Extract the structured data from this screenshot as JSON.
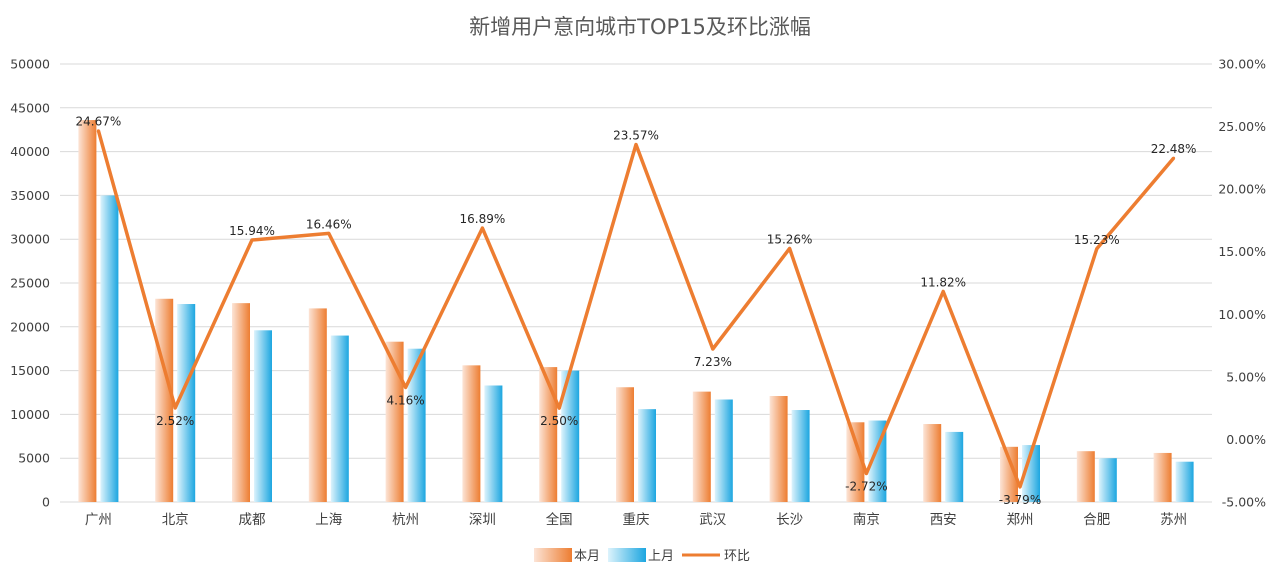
{
  "chart_data": {
    "type": "bar",
    "title": "新增用户意向城市TOP15及环比涨幅",
    "categories": [
      "广州",
      "北京",
      "成都",
      "上海",
      "杭州",
      "深圳",
      "全国",
      "重庆",
      "武汉",
      "长沙",
      "南京",
      "西安",
      "郑州",
      "合肥",
      "苏州"
    ],
    "series": [
      {
        "name": "本月",
        "kind": "bar",
        "axis": "left",
        "color": "#ED7D31",
        "values": [
          43600,
          23200,
          22700,
          22100,
          18300,
          15600,
          15400,
          13100,
          12600,
          12100,
          9100,
          8900,
          6300,
          5800,
          5600
        ]
      },
      {
        "name": "上月",
        "kind": "bar",
        "axis": "left",
        "color": "#1CA6E0",
        "values": [
          35000,
          22600,
          19600,
          19000,
          17500,
          13300,
          15000,
          10600,
          11700,
          10500,
          9300,
          8000,
          6500,
          5000,
          4600
        ]
      },
      {
        "name": "环比",
        "kind": "line",
        "axis": "right",
        "color": "#ED7D31",
        "values": [
          24.67,
          2.52,
          15.94,
          16.46,
          4.16,
          16.89,
          2.5,
          23.57,
          7.23,
          15.26,
          -2.72,
          11.82,
          -3.79,
          15.23,
          22.48
        ],
        "labels": [
          "24.67%",
          "2.52%",
          "15.94%",
          "16.46%",
          "4.16%",
          "16.89%",
          "2.50%",
          "23.57%",
          "7.23%",
          "15.26%",
          "-2.72%",
          "11.82%",
          "-3.79%",
          "15.23%",
          "22.48%"
        ]
      }
    ],
    "y_left": {
      "min": 0,
      "max": 50000,
      "step": 5000,
      "tick_labels": [
        "0",
        "5000",
        "10000",
        "15000",
        "20000",
        "25000",
        "30000",
        "35000",
        "40000",
        "45000",
        "50000"
      ]
    },
    "y_right": {
      "min": -5,
      "max": 30,
      "step": 5,
      "tick_labels": [
        "-5.00%",
        "0.00%",
        "5.00%",
        "10.00%",
        "15.00%",
        "20.00%",
        "25.00%",
        "30.00%"
      ]
    },
    "grid": true,
    "legend": "bottom"
  }
}
